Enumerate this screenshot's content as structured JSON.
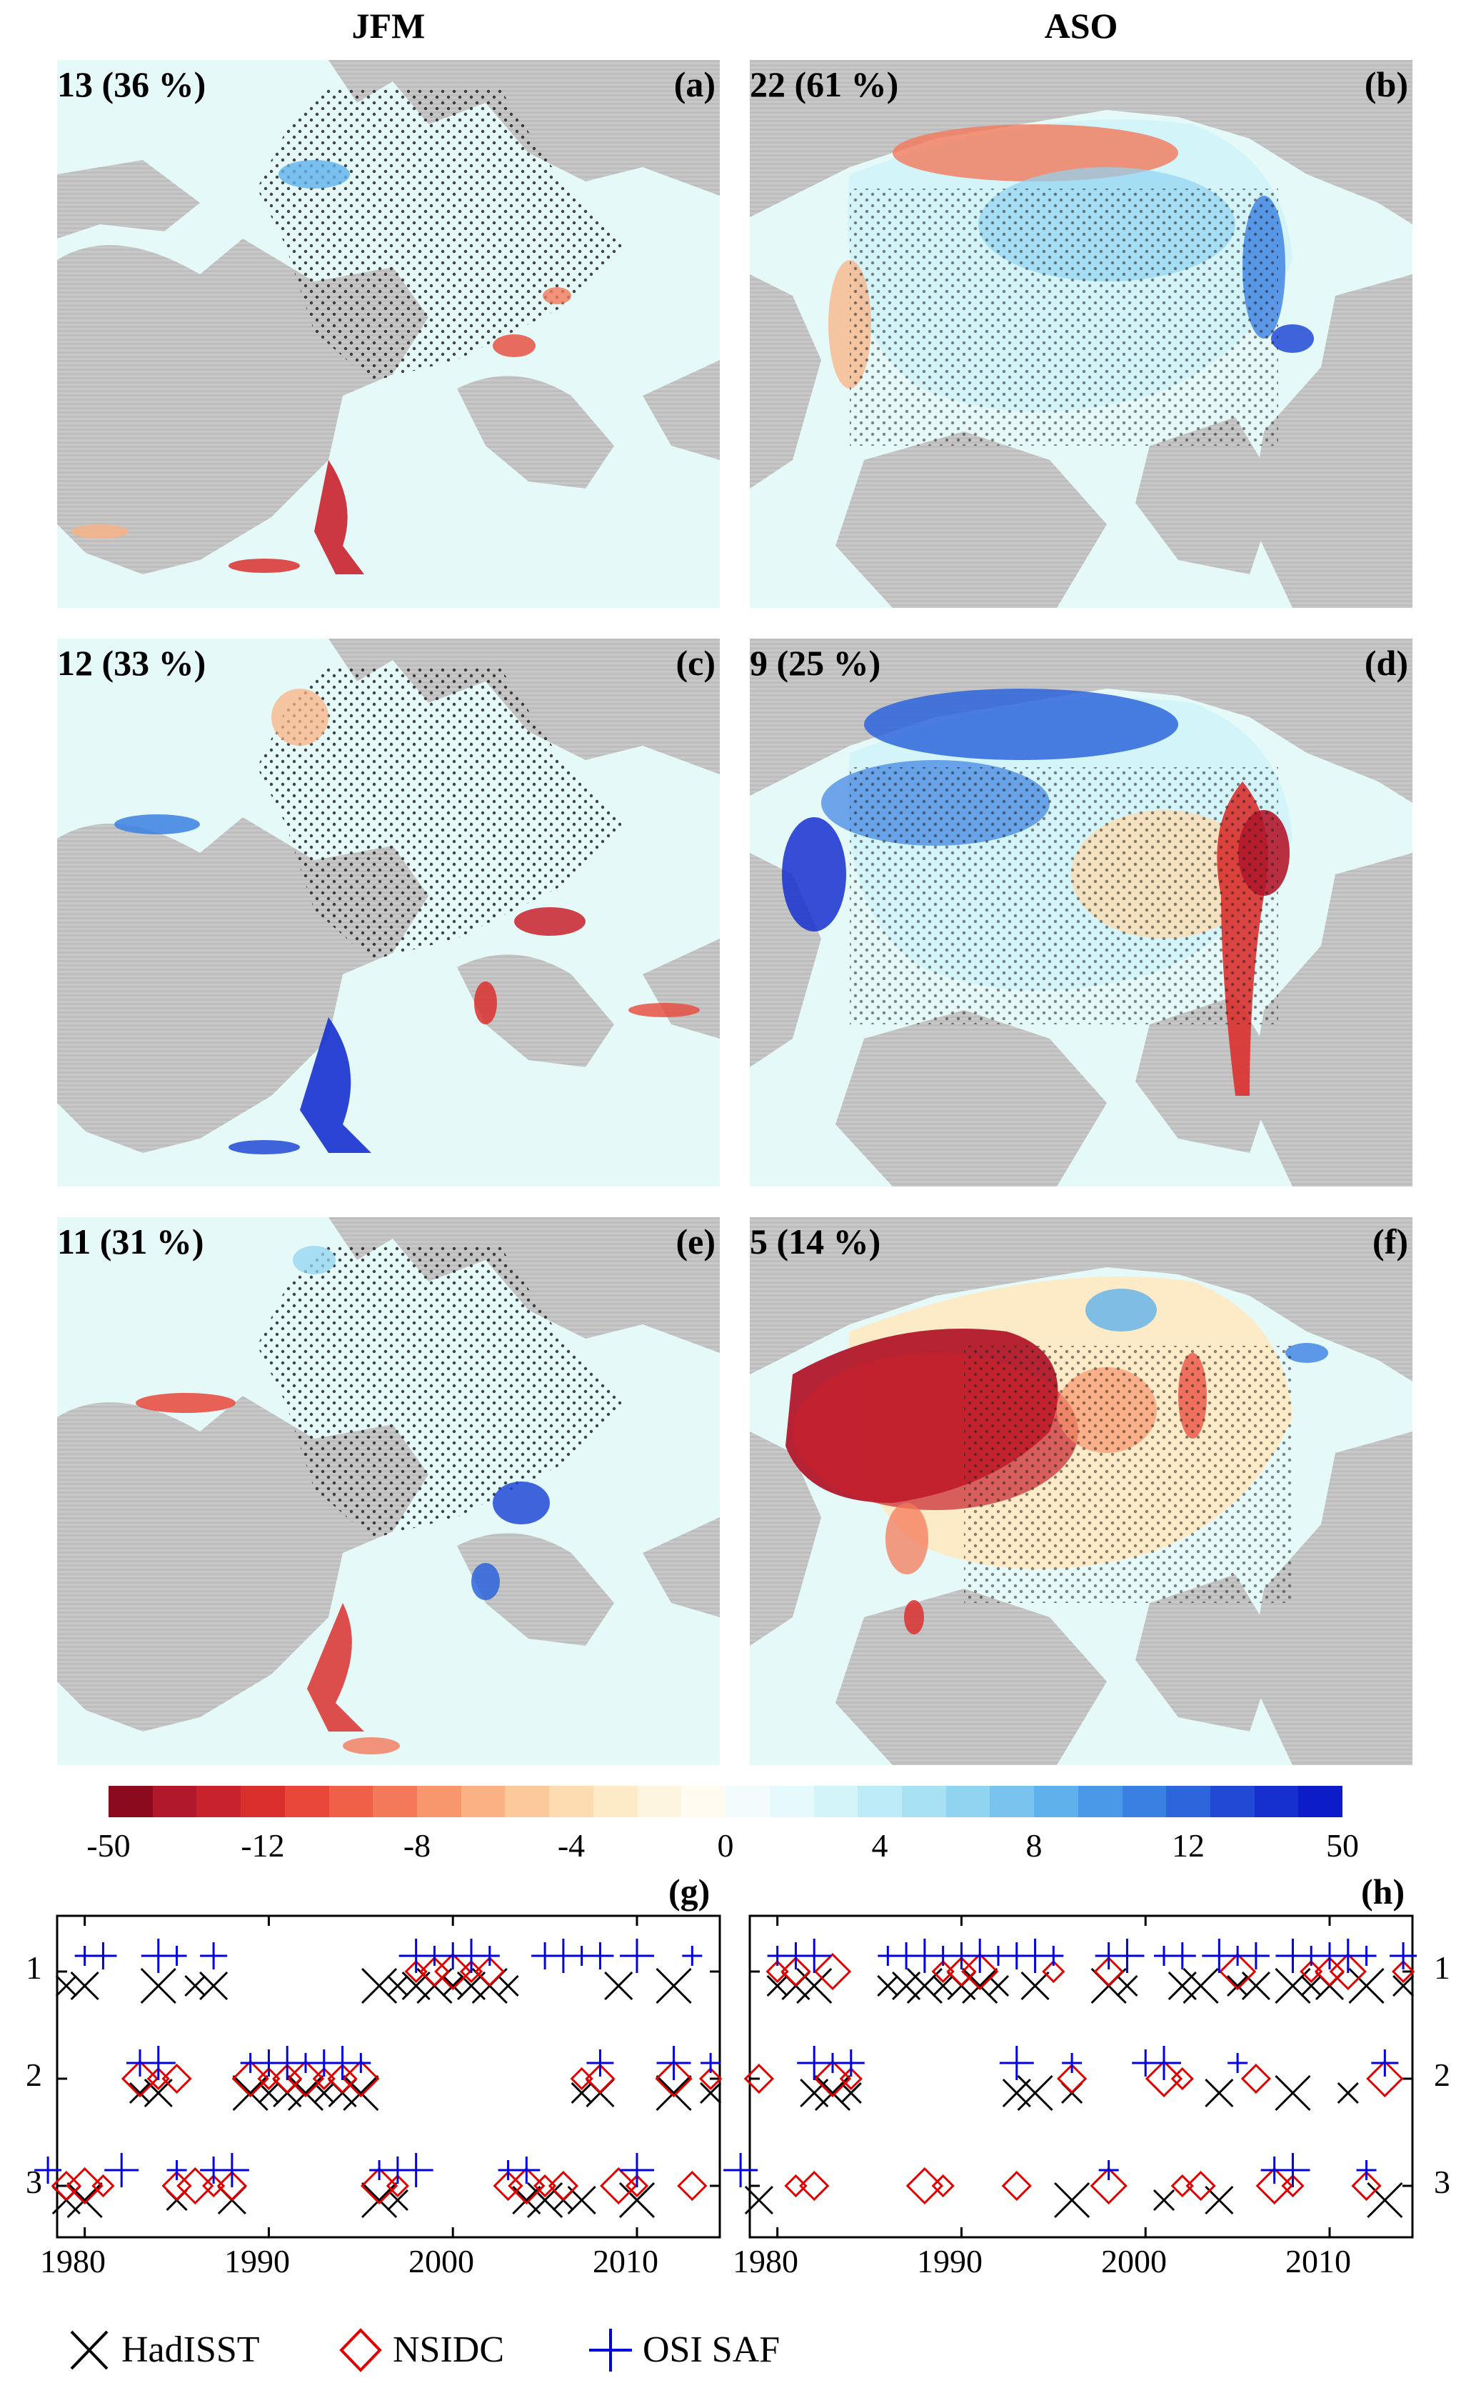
{
  "column_titles": {
    "left": "JFM",
    "right": "ASO"
  },
  "panels": [
    {
      "count": "13 (36 %)",
      "letter": "(a)"
    },
    {
      "count": "22 (61 %)",
      "letter": "(b)"
    },
    {
      "count": "12 (33 %)",
      "letter": "(c)"
    },
    {
      "count": "9 (25 %)",
      "letter": "(d)"
    },
    {
      "count": "11 (31 %)",
      "letter": "(e)"
    },
    {
      "count": "5 (14 %)",
      "letter": "(f)"
    }
  ],
  "colorbar": {
    "ticks": [
      "-50",
      "-12",
      "-8",
      "-4",
      "0",
      "4",
      "8",
      "12",
      "50"
    ],
    "colors": [
      "#8b0a1e",
      "#b2182b",
      "#c8222c",
      "#d9302e",
      "#e8473a",
      "#f06048",
      "#f4795a",
      "#f8966e",
      "#fab183",
      "#fbc99a",
      "#fcdcb0",
      "#fdebc8",
      "#fef5e0",
      "#fffbf0",
      "#f3fcfd",
      "#e6f9fb",
      "#d3f4f9",
      "#bdebf6",
      "#a8e1f4",
      "#91d4f2",
      "#78c4ef",
      "#5fb1ec",
      "#4a99e8",
      "#3a80e2",
      "#2d65dc",
      "#2149d6",
      "#1630cf",
      "#0c1cc8"
    ]
  },
  "timeseries": {
    "g_label": "(g)",
    "h_label": "(h)",
    "rank_ticks": [
      "1",
      "2",
      "3"
    ],
    "year_ticks": [
      "1980",
      "1990",
      "2000",
      "2010"
    ]
  },
  "chart_data": [
    {
      "type": "scatter",
      "title": "(g)",
      "xlim": [
        1978.5,
        2014.5
      ],
      "ylim": [
        3.5,
        0.5
      ],
      "y_ticks": [
        1,
        2,
        3
      ],
      "x_ticks": [
        1980,
        1990,
        2000,
        2010
      ],
      "series": [
        {
          "name": "HadISST",
          "points": [
            [
              1979,
              1
            ],
            [
              1980,
              1
            ],
            [
              1984,
              1
            ],
            [
              1986,
              1
            ],
            [
              1987,
              1
            ],
            [
              1996,
              1
            ],
            [
              1997,
              1
            ],
            [
              1998,
              1
            ],
            [
              1999,
              1
            ],
            [
              2000,
              1
            ],
            [
              2001,
              1
            ],
            [
              2002,
              1
            ],
            [
              2003,
              1
            ],
            [
              2009,
              1
            ],
            [
              2012,
              1
            ],
            [
              1983,
              2
            ],
            [
              1984,
              2
            ],
            [
              1989,
              2
            ],
            [
              1990,
              2
            ],
            [
              1991,
              2
            ],
            [
              1992,
              2
            ],
            [
              1993,
              2
            ],
            [
              1994,
              2
            ],
            [
              1995,
              2
            ],
            [
              2007,
              2
            ],
            [
              2008,
              2
            ],
            [
              2012,
              2
            ],
            [
              2014,
              2
            ],
            [
              1979,
              3
            ],
            [
              1980,
              3
            ],
            [
              1985,
              3
            ],
            [
              1988,
              3
            ],
            [
              1996,
              3
            ],
            [
              1997,
              3
            ],
            [
              2004,
              3
            ],
            [
              2005,
              3
            ],
            [
              2006,
              3
            ],
            [
              2007,
              3
            ],
            [
              2010,
              3
            ]
          ]
        },
        {
          "name": "NSIDC",
          "points": [
            [
              1998,
              1
            ],
            [
              1999,
              1
            ],
            [
              2000,
              1
            ],
            [
              2001,
              1
            ],
            [
              2002,
              1
            ],
            [
              1983,
              2
            ],
            [
              1984,
              2
            ],
            [
              1985,
              2
            ],
            [
              1989,
              2
            ],
            [
              1990,
              2
            ],
            [
              1991,
              2
            ],
            [
              1992,
              2
            ],
            [
              1993,
              2
            ],
            [
              1994,
              2
            ],
            [
              1995,
              2
            ],
            [
              2007,
              2
            ],
            [
              2008,
              2
            ],
            [
              2012,
              2
            ],
            [
              2014,
              2
            ],
            [
              1979,
              3
            ],
            [
              1980,
              3
            ],
            [
              1981,
              3
            ],
            [
              1985,
              3
            ],
            [
              1986,
              3
            ],
            [
              1987,
              3
            ],
            [
              1988,
              3
            ],
            [
              1996,
              3
            ],
            [
              1997,
              3
            ],
            [
              2003,
              3
            ],
            [
              2004,
              3
            ],
            [
              2005,
              3
            ],
            [
              2006,
              3
            ],
            [
              2009,
              3
            ],
            [
              2010,
              3
            ],
            [
              2013,
              3
            ]
          ]
        },
        {
          "name": "OSI SAF",
          "points": [
            [
              1980,
              1
            ],
            [
              1981,
              1
            ],
            [
              1984,
              1
            ],
            [
              1985,
              1
            ],
            [
              1987,
              1
            ],
            [
              1998,
              1
            ],
            [
              1999,
              1
            ],
            [
              2000,
              1
            ],
            [
              2001,
              1
            ],
            [
              2002,
              1
            ],
            [
              2005,
              1
            ],
            [
              2006,
              1
            ],
            [
              2007,
              1
            ],
            [
              2008,
              1
            ],
            [
              2010,
              1
            ],
            [
              2013,
              1
            ],
            [
              1983,
              2
            ],
            [
              1984,
              2
            ],
            [
              1989,
              2
            ],
            [
              1990,
              2
            ],
            [
              1991,
              2
            ],
            [
              1992,
              2
            ],
            [
              1993,
              2
            ],
            [
              1994,
              2
            ],
            [
              1995,
              2
            ],
            [
              2008,
              2
            ],
            [
              2012,
              2
            ],
            [
              2014,
              2
            ],
            [
              1978,
              3
            ],
            [
              1982,
              3
            ],
            [
              1985,
              3
            ],
            [
              1987,
              3
            ],
            [
              1988,
              3
            ],
            [
              1996,
              3
            ],
            [
              1997,
              3
            ],
            [
              1998,
              3
            ],
            [
              2003,
              3
            ],
            [
              2004,
              3
            ],
            [
              2010,
              3
            ]
          ]
        }
      ]
    },
    {
      "type": "scatter",
      "title": "(h)",
      "xlim": [
        1978.5,
        2014.5
      ],
      "ylim": [
        3.5,
        0.5
      ],
      "y_ticks": [
        1,
        2,
        3
      ],
      "x_ticks": [
        1980,
        1990,
        2000,
        2010
      ],
      "series": [
        {
          "name": "HadISST",
          "points": [
            [
              1980,
              1
            ],
            [
              1981,
              1
            ],
            [
              1982,
              1
            ],
            [
              1986,
              1
            ],
            [
              1987,
              1
            ],
            [
              1988,
              1
            ],
            [
              1989,
              1
            ],
            [
              1990,
              1
            ],
            [
              1991,
              1
            ],
            [
              1992,
              1
            ],
            [
              1994,
              1
            ],
            [
              1998,
              1
            ],
            [
              1999,
              1
            ],
            [
              2002,
              1
            ],
            [
              2003,
              1
            ],
            [
              2005,
              1
            ],
            [
              2006,
              1
            ],
            [
              2008,
              1
            ],
            [
              2009,
              1
            ],
            [
              2010,
              1
            ],
            [
              2012,
              1
            ],
            [
              2014,
              1
            ],
            [
              1982,
              2
            ],
            [
              1983,
              2
            ],
            [
              1984,
              2
            ],
            [
              1993,
              2
            ],
            [
              1994,
              2
            ],
            [
              1996,
              2
            ],
            [
              2004,
              2
            ],
            [
              2008,
              2
            ],
            [
              2011,
              2
            ],
            [
              1979,
              3
            ],
            [
              1996,
              3
            ],
            [
              2001,
              3
            ],
            [
              2004,
              3
            ],
            [
              2013,
              3
            ]
          ]
        },
        {
          "name": "NSIDC",
          "points": [
            [
              1980,
              1
            ],
            [
              1981,
              1
            ],
            [
              1983,
              1
            ],
            [
              1989,
              1
            ],
            [
              1990,
              1
            ],
            [
              1991,
              1
            ],
            [
              1995,
              1
            ],
            [
              1998,
              1
            ],
            [
              2005,
              1
            ],
            [
              2009,
              1
            ],
            [
              2010,
              1
            ],
            [
              2011,
              1
            ],
            [
              2014,
              1
            ],
            [
              1979,
              2
            ],
            [
              1983,
              2
            ],
            [
              1984,
              2
            ],
            [
              1996,
              2
            ],
            [
              2001,
              2
            ],
            [
              2002,
              2
            ],
            [
              2006,
              2
            ],
            [
              2013,
              2
            ],
            [
              1981,
              3
            ],
            [
              1982,
              3
            ],
            [
              1988,
              3
            ],
            [
              1989,
              3
            ],
            [
              1993,
              3
            ],
            [
              1998,
              3
            ],
            [
              2002,
              3
            ],
            [
              2003,
              3
            ],
            [
              2007,
              3
            ],
            [
              2008,
              3
            ],
            [
              2012,
              3
            ]
          ]
        },
        {
          "name": "OSI SAF",
          "points": [
            [
              1980,
              1
            ],
            [
              1981,
              1
            ],
            [
              1982,
              1
            ],
            [
              1986,
              1
            ],
            [
              1987,
              1
            ],
            [
              1988,
              1
            ],
            [
              1989,
              1
            ],
            [
              1990,
              1
            ],
            [
              1991,
              1
            ],
            [
              1992,
              1
            ],
            [
              1993,
              1
            ],
            [
              1994,
              1
            ],
            [
              1995,
              1
            ],
            [
              1998,
              1
            ],
            [
              1999,
              1
            ],
            [
              2001,
              1
            ],
            [
              2002,
              1
            ],
            [
              2004,
              1
            ],
            [
              2005,
              1
            ],
            [
              2006,
              1
            ],
            [
              2008,
              1
            ],
            [
              2009,
              1
            ],
            [
              2010,
              1
            ],
            [
              2011,
              1
            ],
            [
              2012,
              1
            ],
            [
              2014,
              1
            ],
            [
              1982,
              2
            ],
            [
              1983,
              2
            ],
            [
              1984,
              2
            ],
            [
              1993,
              2
            ],
            [
              1996,
              2
            ],
            [
              2000,
              2
            ],
            [
              2001,
              2
            ],
            [
              2005,
              2
            ],
            [
              2013,
              2
            ],
            [
              1978,
              3
            ],
            [
              1998,
              3
            ],
            [
              2007,
              3
            ],
            [
              2008,
              3
            ],
            [
              2012,
              3
            ]
          ]
        }
      ]
    }
  ]
}
